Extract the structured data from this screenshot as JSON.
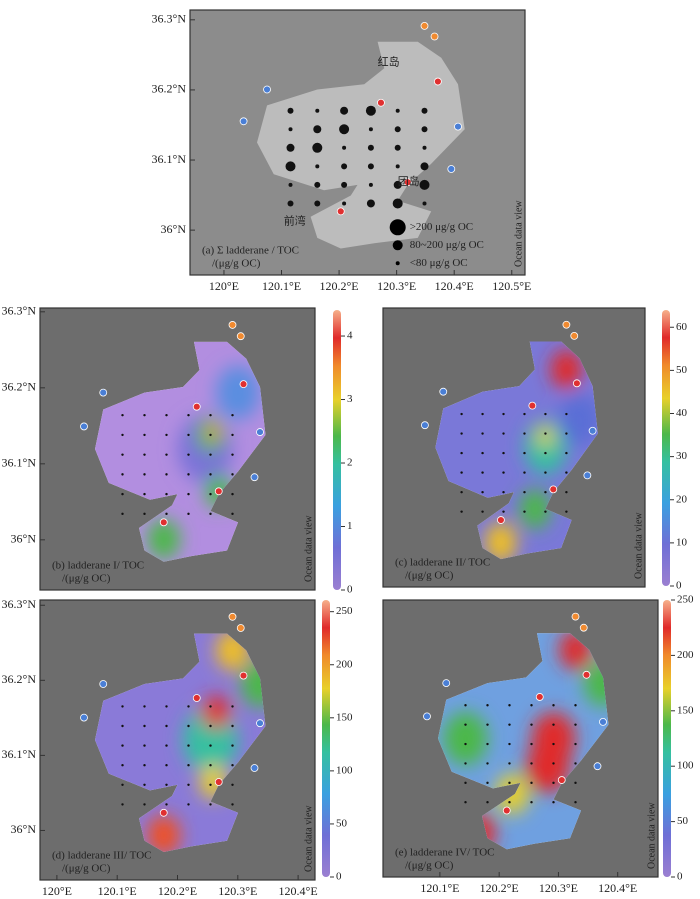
{
  "panels": [
    {
      "label": "(a) Σ ladderane / TOC",
      "unit": "/(μg/g OC)",
      "latlim": [
        35.936,
        36.314
      ],
      "lonlim": [
        119.941,
        120.523
      ],
      "lat_ticks": [
        {
          "value": 36.3,
          "label": "36.3°N"
        },
        {
          "value": 36.2,
          "label": "36.2°N"
        },
        {
          "value": 36.1,
          "label": "36.1°N"
        },
        {
          "value": 36,
          "label": "36°N"
        }
      ],
      "lon_ticks": [
        {
          "value": 120,
          "label": "120°E"
        },
        {
          "value": 120.1,
          "label": "120.1°E"
        },
        {
          "value": 120.2,
          "label": "120.2°E"
        },
        {
          "value": 120.3,
          "label": "120.3°E"
        },
        {
          "value": 120.4,
          "label": "120.4°E"
        },
        {
          "value": 120.5,
          "label": "120.5°E"
        }
      ],
      "place_names": [
        "红岛",
        "团岛",
        "前湾"
      ],
      "legend": [
        ">200 μg/g OC",
        "80~200 μg/g OC",
        "<80 μg/g OC"
      ],
      "side_label": "Ocean data view"
    },
    {
      "label": "(b) ladderane I/ TOC",
      "unit": "/(μg/g OC)",
      "latlim": [
        35.934,
        36.305
      ],
      "lat_ticks": [
        {
          "value": 36.3,
          "label": "36.3°N"
        },
        {
          "value": 36.2,
          "label": "36.2°N"
        },
        {
          "value": 36.1,
          "label": "36.1°N"
        },
        {
          "value": 36,
          "label": "36°N"
        }
      ],
      "colorbar_range": [
        0,
        4.41
      ],
      "colorbar_ticks": [
        0,
        1,
        2,
        3,
        4
      ],
      "side_label": "Ocean data view"
    },
    {
      "label": "(c) ladderane II/ TOC",
      "unit": "/(μg/g OC)",
      "colorbar_range": [
        0,
        64
      ],
      "colorbar_ticks": [
        0,
        10,
        20,
        30,
        40,
        50,
        60
      ],
      "side_label": "Ocean data view"
    },
    {
      "label": "(d) ladderane III/ TOC",
      "unit": "/(μg/g OC)",
      "latlim": [
        35.934,
        36.307
      ],
      "lonlim": [
        119.972,
        120.428
      ],
      "lat_ticks": [
        {
          "value": 36.3,
          "label": "36.3°N"
        },
        {
          "value": 36.2,
          "label": "36.2°N"
        },
        {
          "value": 36.1,
          "label": "36.1°N"
        },
        {
          "value": 36,
          "label": "36°N"
        }
      ],
      "lon_ticks": [
        {
          "value": 120,
          "label": "120°E"
        },
        {
          "value": 120.1,
          "label": "120.1°E"
        },
        {
          "value": 120.2,
          "label": "120.2°E"
        },
        {
          "value": 120.3,
          "label": "120.3°E"
        },
        {
          "value": 120.4,
          "label": "120.4°E"
        }
      ],
      "colorbar_range": [
        0,
        261
      ],
      "colorbar_ticks": [
        0,
        50,
        100,
        150,
        200,
        250
      ],
      "side_label": "Ocean data view"
    },
    {
      "label": "(e) ladderane IV/ TOC",
      "unit": "/(μg/g OC)",
      "lonlim": [
        120.004,
        120.468
      ],
      "lon_ticks": [
        {
          "value": 120.1,
          "label": "120.1°E"
        },
        {
          "value": 120.2,
          "label": "120.2°E"
        },
        {
          "value": 120.3,
          "label": "120.3°E"
        },
        {
          "value": 120.4,
          "label": "120.4°E"
        }
      ],
      "colorbar_range": [
        0,
        250
      ],
      "colorbar_ticks": [
        0,
        50,
        100,
        150,
        200,
        250
      ],
      "side_label": "Ocean data view"
    }
  ]
}
